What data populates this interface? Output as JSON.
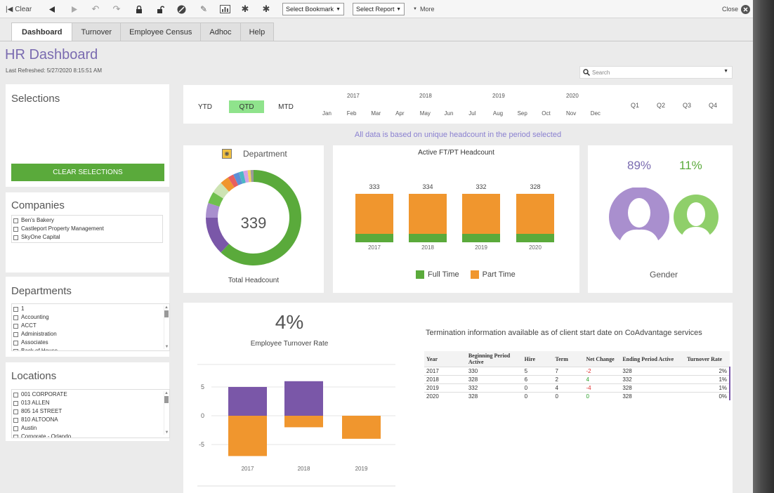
{
  "toolbar": {
    "clear_label": "Clear",
    "select_bookmark": "Select Bookmark",
    "select_report": "Select Report",
    "more_label": "More",
    "close_label": "Close"
  },
  "tabs": [
    "Dashboard",
    "Turnover",
    "Employee Census",
    "Adhoc",
    "Help"
  ],
  "header": {
    "title": "HR Dashboard",
    "last_refreshed": "Last Refreshed: 5/27/2020 8:15:51 AM",
    "search_placeholder": "Search"
  },
  "selections": {
    "title": "Selections",
    "clear_button": "CLEAR SELECTIONS"
  },
  "companies": {
    "title": "Companies",
    "items": [
      "Ben's Bakery",
      "Castleport Property Management",
      "SkyOne Capital"
    ]
  },
  "departments": {
    "title": "Departments",
    "items": [
      "1",
      "Accounting",
      "ACCT",
      "Administration",
      "Associates",
      "Back of House"
    ]
  },
  "locations": {
    "title": "Locations",
    "items": [
      "001 CORPORATE",
      "013 ALLEN",
      "805 14 STREET",
      "810 ALTOONA",
      "Austin",
      "Corporate - Orlando"
    ]
  },
  "period": {
    "modes": [
      "YTD",
      "QTD",
      "MTD"
    ],
    "active_mode": "QTD",
    "years": [
      "2017",
      "2018",
      "2019",
      "2020"
    ],
    "months": [
      "Jan",
      "Feb",
      "Mar",
      "Apr",
      "May",
      "Jun",
      "Jul",
      "Aug",
      "Sep",
      "Oct",
      "Nov",
      "Dec"
    ],
    "quarters": [
      "Q1",
      "Q2",
      "Q3",
      "Q4"
    ]
  },
  "note": "All data is based on unique headcount in the period selected",
  "department_chart": {
    "title": "Department",
    "center_value": "339",
    "footer": "Total Headcount"
  },
  "headcount_chart": {
    "title": "Active FT/PT Headcount",
    "legend": [
      "Full Time",
      "Part Time"
    ]
  },
  "gender": {
    "male_pct": "89%",
    "female_pct": "11%",
    "title": "Gender"
  },
  "turnover": {
    "rate": "4%",
    "rate_label": "Employee Turnover Rate"
  },
  "termination": {
    "note": "Termination information available as of client start date on CoAdvantage services",
    "headers": [
      "Year",
      "Beginning Period Active",
      "Hire",
      "Term",
      "Net Change",
      "Ending Period Active",
      "Turnover Rate"
    ],
    "rows": [
      [
        "2017",
        "330",
        "5",
        "7",
        "-2",
        "328",
        "2%"
      ],
      [
        "2018",
        "328",
        "6",
        "2",
        "4",
        "332",
        "1%"
      ],
      [
        "2019",
        "332",
        "0",
        "4",
        "-4",
        "328",
        "1%"
      ],
      [
        "2020",
        "328",
        "0",
        "0",
        "0",
        "328",
        "0%"
      ]
    ]
  },
  "colors": {
    "purple": "#7a57a8",
    "orange": "#f0962e",
    "green": "#5aaa3b",
    "light_purple": "#a98fce",
    "light_green": "#8fcf6a"
  },
  "chart_data": [
    {
      "type": "bar",
      "title": "Active FT/PT Headcount",
      "categories": [
        "2017",
        "2018",
        "2019",
        "2020"
      ],
      "totals": [
        333,
        334,
        332,
        328
      ],
      "series": [
        {
          "name": "Full Time",
          "values": [
            33,
            34,
            32,
            28
          ]
        },
        {
          "name": "Part Time",
          "values": [
            300,
            300,
            300,
            300
          ]
        }
      ]
    },
    {
      "type": "bar",
      "categories": [
        "2017",
        "2018",
        "2019"
      ],
      "ylim": [
        -8,
        8
      ],
      "yticks": [
        -5,
        0,
        5
      ],
      "series": [
        {
          "name": "Hire",
          "values": [
            5,
            6,
            0
          ]
        },
        {
          "name": "Term",
          "values": [
            -7,
            -2,
            -4
          ]
        }
      ]
    },
    {
      "type": "pie",
      "title": "Department",
      "values": [
        62,
        13,
        5,
        4,
        4,
        3,
        2,
        2,
        1.5,
        1.5,
        1,
        1
      ]
    }
  ]
}
